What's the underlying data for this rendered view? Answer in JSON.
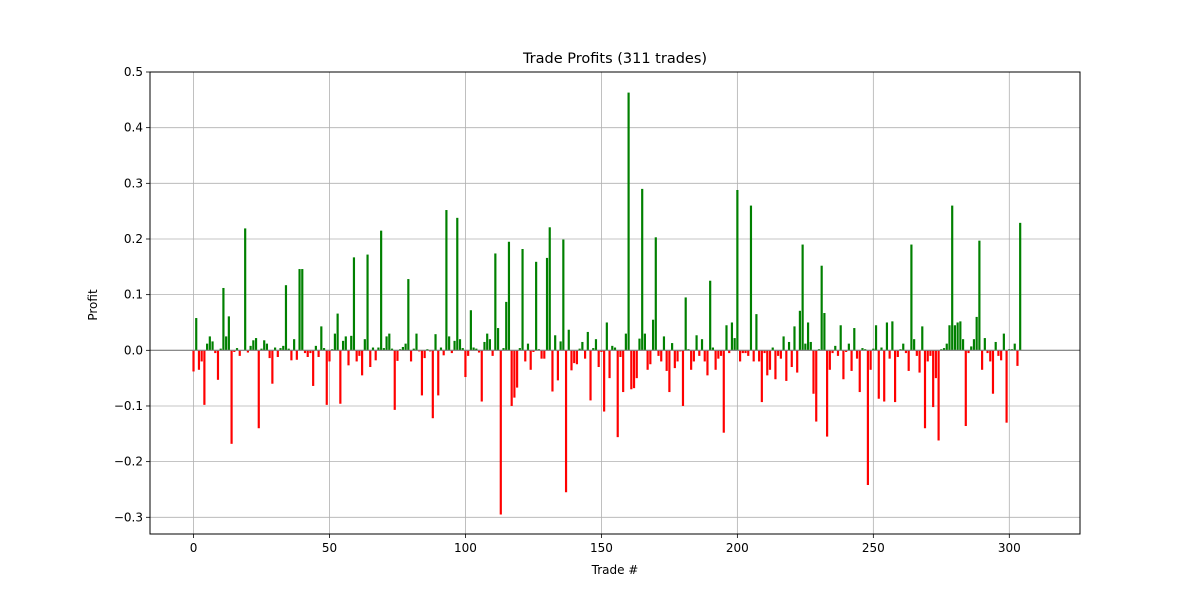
{
  "chart_data": {
    "type": "bar",
    "title": "Trade Profits (311 trades)",
    "xlabel": "Trade #",
    "ylabel": "Profit",
    "xlim": [
      -16,
      326
    ],
    "ylim": [
      -0.33,
      0.5
    ],
    "xticks": [
      0,
      50,
      100,
      150,
      200,
      250,
      300
    ],
    "yticks": [
      -0.3,
      -0.2,
      -0.1,
      0.0,
      0.1,
      0.2,
      0.3,
      0.4,
      0.5
    ],
    "ytick_labels": [
      "−0.3",
      "−0.2",
      "−0.1",
      "0.0",
      "0.1",
      "0.2",
      "0.3",
      "0.4",
      "0.5"
    ],
    "grid": true,
    "zero_line": true,
    "colors": {
      "positive": "#008000",
      "negative": "#ff0000",
      "zero_line": "#808080"
    },
    "values": [
      -0.038,
      0.058,
      -0.035,
      -0.02,
      -0.098,
      0.012,
      0.025,
      0.016,
      -0.005,
      -0.053,
      0.003,
      0.112,
      0.025,
      0.061,
      -0.168,
      -0.003,
      0.004,
      -0.01,
      0.0,
      0.219,
      -0.004,
      0.008,
      0.018,
      0.022,
      -0.14,
      0.003,
      0.018,
      0.012,
      -0.014,
      -0.06,
      0.005,
      -0.012,
      0.004,
      0.008,
      0.117,
      0.003,
      -0.018,
      0.02,
      -0.017,
      0.146,
      0.146,
      -0.005,
      -0.012,
      -0.005,
      -0.064,
      0.008,
      -0.012,
      0.043,
      0.004,
      -0.098,
      -0.02,
      0.002,
      0.03,
      0.066,
      -0.096,
      0.017,
      0.025,
      -0.027,
      0.026,
      0.167,
      -0.02,
      -0.01,
      -0.045,
      0.02,
      0.172,
      -0.03,
      0.005,
      -0.018,
      0.005,
      0.215,
      0.004,
      0.025,
      0.03,
      0.003,
      -0.107,
      -0.019,
      0.002,
      0.006,
      0.012,
      0.128,
      -0.02,
      0.003,
      0.03,
      -0.002,
      -0.081,
      -0.014,
      0.002,
      -0.002,
      -0.122,
      0.029,
      -0.081,
      0.005,
      -0.009,
      0.252,
      0.025,
      -0.005,
      0.017,
      0.238,
      0.02,
      0.004,
      -0.048,
      -0.01,
      0.072,
      0.005,
      0.003,
      -0.004,
      -0.092,
      0.015,
      0.03,
      0.02,
      -0.01,
      0.174,
      0.04,
      -0.295,
      0.004,
      0.087,
      0.195,
      -0.1,
      -0.085,
      -0.067,
      0.004,
      0.182,
      -0.02,
      0.012,
      -0.035,
      -0.003,
      0.159,
      0.002,
      -0.015,
      -0.015,
      0.166,
      0.221,
      -0.074,
      0.027,
      -0.054,
      0.016,
      0.199,
      -0.255,
      0.037,
      -0.036,
      -0.023,
      -0.025,
      0.003,
      0.015,
      -0.015,
      0.033,
      -0.09,
      0.004,
      0.02,
      -0.03,
      -0.003,
      -0.11,
      0.05,
      -0.05,
      0.008,
      0.005,
      -0.156,
      -0.012,
      -0.075,
      0.03,
      0.463,
      -0.07,
      -0.068,
      -0.05,
      0.021,
      0.29,
      0.03,
      -0.035,
      -0.025,
      0.055,
      0.203,
      -0.01,
      -0.02,
      0.025,
      -0.037,
      -0.075,
      0.013,
      -0.032,
      -0.02,
      -0.002,
      -0.1,
      0.095,
      0.002,
      -0.035,
      -0.02,
      0.027,
      -0.01,
      0.02,
      -0.02,
      -0.045,
      0.125,
      0.005,
      -0.035,
      -0.015,
      -0.01,
      -0.148,
      0.045,
      -0.005,
      0.05,
      0.022,
      0.288,
      -0.02,
      -0.005,
      -0.005,
      -0.01,
      0.26,
      -0.02,
      0.065,
      -0.02,
      -0.093,
      -0.005,
      -0.045,
      -0.035,
      0.005,
      -0.052,
      -0.01,
      -0.015,
      0.025,
      -0.055,
      0.015,
      -0.03,
      0.043,
      -0.04,
      0.071,
      0.19,
      0.012,
      0.05,
      0.015,
      -0.078,
      -0.128,
      0.002,
      0.152,
      0.067,
      -0.155,
      -0.035,
      -0.005,
      0.008,
      -0.01,
      0.045,
      -0.052,
      -0.003,
      0.012,
      -0.037,
      0.04,
      -0.015,
      -0.075,
      0.004,
      0.002,
      -0.242,
      -0.035,
      0.003,
      0.045,
      -0.087,
      0.005,
      -0.092,
      0.05,
      -0.015,
      0.052,
      -0.093,
      -0.012,
      0.002,
      0.012,
      -0.005,
      -0.037,
      0.19,
      0.02,
      -0.01,
      -0.04,
      0.043,
      -0.14,
      -0.02,
      -0.01,
      -0.102,
      -0.05,
      -0.162,
      0.002,
      0.004,
      0.012,
      0.045,
      0.26,
      0.045,
      0.05,
      0.052,
      0.02,
      -0.136,
      -0.005,
      0.007,
      0.02,
      0.06,
      0.197,
      -0.035,
      0.022,
      -0.005,
      -0.02,
      -0.078,
      0.015,
      -0.01,
      -0.018,
      0.03,
      -0.13,
      0.002,
      0.002,
      0.012,
      -0.028,
      0.229,
      0.0,
      0.0,
      0.0,
      0.0,
      0.0,
      0.0
    ]
  }
}
